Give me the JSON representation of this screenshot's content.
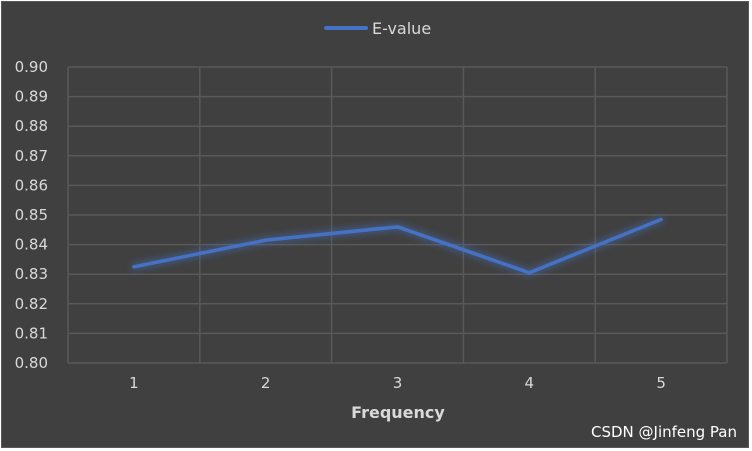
{
  "chart_data": {
    "type": "line",
    "title": "",
    "xlabel": "Frequency",
    "ylabel": "",
    "categories": [
      "1",
      "2",
      "3",
      "4",
      "5"
    ],
    "series": [
      {
        "name": "E-value",
        "values": [
          0.8325,
          0.8415,
          0.846,
          0.8305,
          0.8485
        ]
      }
    ],
    "ylim": [
      0.8,
      0.9
    ],
    "yticks": [
      "0.80",
      "0.81",
      "0.82",
      "0.83",
      "0.84",
      "0.85",
      "0.86",
      "0.87",
      "0.88",
      "0.89",
      "0.90"
    ],
    "grid": true,
    "legend": "top-center",
    "colors": {
      "background": "#404040",
      "grid": "#595959",
      "series": "#4472c4",
      "text": "#d9d9d9"
    }
  },
  "watermark": "CSDN @Jinfeng Pan"
}
